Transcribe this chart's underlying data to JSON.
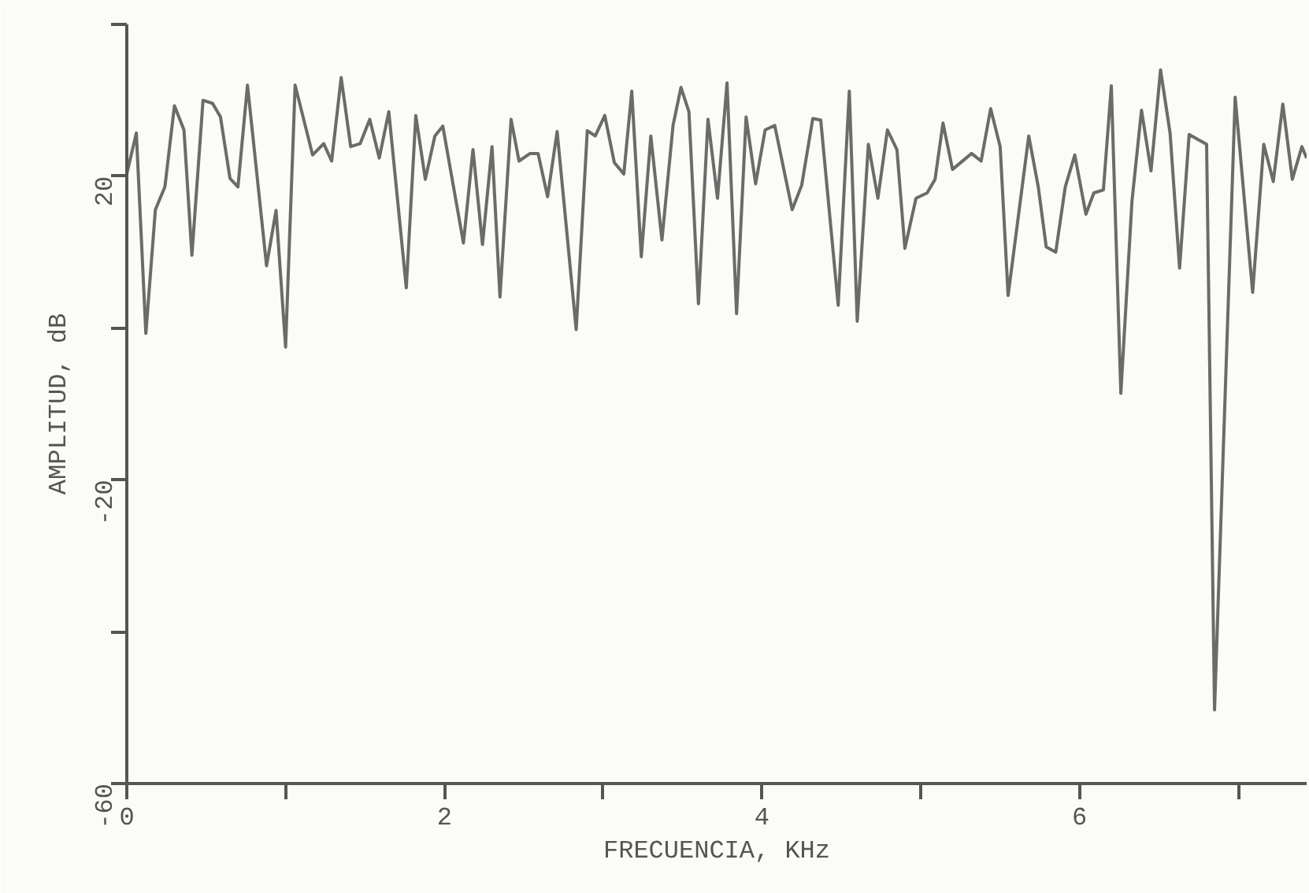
{
  "chart_data": {
    "type": "line",
    "xlabel": "FRECUENCIA, KHz",
    "ylabel": "AMPLITUD, dB",
    "x": [
      0,
      0.06,
      0.12,
      0.18,
      0.24,
      0.3,
      0.36,
      0.41,
      0.48,
      0.54,
      0.59,
      0.65,
      0.7,
      0.76,
      0.88,
      0.94,
      1.0,
      1.06,
      1.17,
      1.24,
      1.29,
      1.35,
      1.41,
      1.47,
      1.53,
      1.59,
      1.65,
      1.76,
      1.82,
      1.88,
      1.94,
      1.99,
      2.12,
      2.18,
      2.24,
      2.3,
      2.35,
      2.42,
      2.47,
      2.54,
      2.59,
      2.65,
      2.71,
      2.83,
      2.9,
      2.95,
      3.01,
      3.07,
      3.13,
      3.18,
      3.24,
      3.3,
      3.37,
      3.44,
      3.49,
      3.54,
      3.6,
      3.66,
      3.72,
      3.78,
      3.84,
      3.9,
      3.96,
      4.02,
      4.08,
      4.19,
      4.25,
      4.32,
      4.37,
      4.48,
      4.55,
      4.6,
      4.67,
      4.73,
      4.79,
      4.85,
      4.9,
      4.97,
      5.04,
      5.09,
      5.14,
      5.2,
      5.32,
      5.38,
      5.44,
      5.5,
      5.55,
      5.68,
      5.74,
      5.79,
      5.85,
      5.91,
      5.97,
      6.04,
      6.09,
      6.15,
      6.2,
      6.26,
      6.33,
      6.39,
      6.45,
      6.51,
      6.57,
      6.63,
      6.69,
      6.8,
      6.85,
      6.98,
      7.09,
      7.16,
      7.22,
      7.28,
      7.34,
      7.4,
      7.43
    ],
    "series": [
      {
        "color": "#6b6b6b",
        "values": [
          20.3,
          25.7,
          -0.7,
          15.6,
          18.6,
          29.3,
          26.1,
          9.6,
          30,
          29.6,
          27.8,
          19.7,
          18.6,
          32,
          8.2,
          15.5,
          -2.5,
          32,
          22.8,
          24.3,
          22,
          33,
          23.9,
          24.3,
          27.5,
          22.4,
          28.5,
          5.3,
          28,
          19.6,
          25.3,
          26.6,
          11.2,
          23.5,
          11,
          23.9,
          4.1,
          27.5,
          22,
          23,
          23,
          17.3,
          25.9,
          -0.2,
          26,
          25.3,
          28,
          21.8,
          20.3,
          31.2,
          9.4,
          25.3,
          11.6,
          26.7,
          31.7,
          28.5,
          3.2,
          27.5,
          17.1,
          32.3,
          1.9,
          27.8,
          19,
          26.1,
          26.7,
          15.6,
          18.8,
          27.6,
          27.4,
          3,
          31.2,
          0.9,
          24.2,
          17.1,
          26.1,
          23.5,
          10.5,
          17.1,
          17.8,
          19.6,
          27,
          20.9,
          23,
          22,
          28.9,
          23.9,
          4.3,
          25.3,
          18.6,
          10.7,
          10,
          18.6,
          22.8,
          15,
          17.8,
          18.2,
          31.9,
          -8.6,
          16.7,
          28.7,
          20.7,
          34,
          25.7,
          7.9,
          25.5,
          24.2,
          -50.3,
          30.4,
          4.7,
          24.2,
          19.3,
          29.5,
          19.6,
          23.9,
          22.4
        ]
      }
    ],
    "xlim": [
      0,
      7.43
    ],
    "ylim": [
      -60,
      40
    ],
    "xticks": [
      0,
      {
        "value": 1,
        "label": null
      },
      2,
      {
        "value": 3,
        "label": null
      },
      4,
      {
        "value": 5,
        "label": null
      },
      6,
      {
        "value": 7,
        "label": null
      }
    ],
    "yticks": [
      -60,
      {
        "value": -40,
        "label": null
      },
      -20,
      {
        "value": 0,
        "label": null
      },
      20,
      {
        "value": 40,
        "label": null
      }
    ],
    "grid": false,
    "marker": "none",
    "line_style": "solid"
  }
}
